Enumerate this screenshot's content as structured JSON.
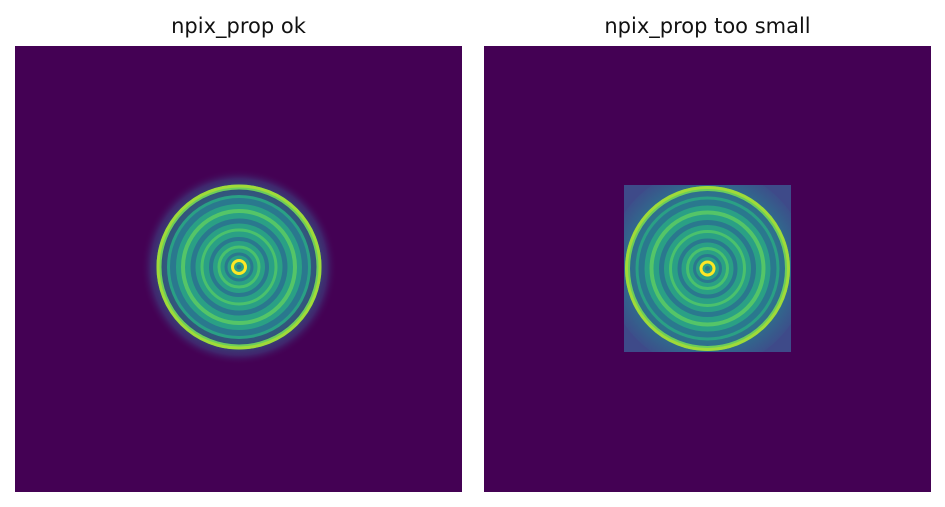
{
  "panels": [
    {
      "title": "npix_prop ok"
    },
    {
      "title": "npix_prop too small"
    }
  ],
  "colors": {
    "background": "#440154",
    "teal": "#2a788e",
    "green": "#35b779",
    "lime": "#90d743",
    "yellow": "#fde725"
  }
}
